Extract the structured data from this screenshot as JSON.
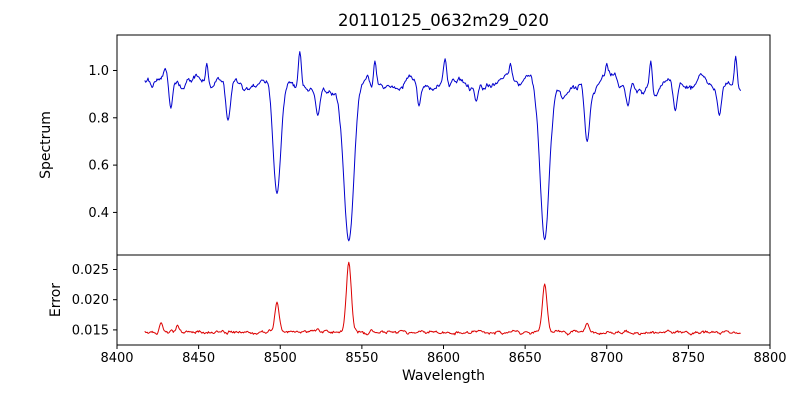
{
  "figure": {
    "title": "20110125_0632m29_020",
    "background": "#ffffff"
  },
  "chart_data": [
    {
      "type": "line",
      "series_name": "spectrum",
      "title": "20110125_0632m29_020",
      "ylabel": "Spectrum",
      "color": "#0000cd",
      "grid": false,
      "legend": null,
      "xlim": [
        8400,
        8800
      ],
      "ylim": [
        0.22,
        1.15
      ],
      "yticks": [
        {
          "value": 0.4,
          "label": "0.4"
        },
        {
          "value": 0.6,
          "label": "0.6"
        },
        {
          "value": 0.8,
          "label": "0.8"
        },
        {
          "value": 1.0,
          "label": "1.0"
        }
      ],
      "baseline": 0.94,
      "samples": {
        "x_start": 8417,
        "x_end": 8782,
        "x_step": 0.5,
        "seed": 42,
        "noise_components": [
          {
            "amplitude": 0.052,
            "smooth_window": 6,
            "passes": 2
          },
          {
            "amplitude": 0.028,
            "smooth_window": 2,
            "passes": 1
          }
        ]
      },
      "dips": [
        {
          "center": 8498,
          "level": 0.48,
          "sigma": 2.3
        },
        {
          "center": 8542,
          "level": 0.28,
          "sigma": 3.0
        },
        {
          "center": 8662,
          "level": 0.285,
          "sigma": 2.8
        },
        {
          "center": 8688,
          "level": 0.7,
          "sigma": 1.5
        },
        {
          "center": 8433,
          "level": 0.84,
          "sigma": 1.2
        },
        {
          "center": 8468,
          "level": 0.79,
          "sigma": 1.4
        },
        {
          "center": 8523,
          "level": 0.81,
          "sigma": 1.2
        },
        {
          "center": 8585,
          "level": 0.85,
          "sigma": 1.1
        },
        {
          "center": 8620,
          "level": 0.87,
          "sigma": 1.0
        },
        {
          "center": 8673,
          "level": 0.88,
          "sigma": 0.9
        },
        {
          "center": 8713,
          "level": 0.85,
          "sigma": 1.1
        },
        {
          "center": 8742,
          "level": 0.83,
          "sigma": 1.2
        },
        {
          "center": 8769,
          "level": 0.81,
          "sigma": 1.2
        }
      ],
      "peaks": [
        {
          "center": 8455,
          "level": 1.03,
          "sigma": 0.8
        },
        {
          "center": 8512,
          "level": 1.08,
          "sigma": 0.9
        },
        {
          "center": 8558,
          "level": 1.04,
          "sigma": 0.8
        },
        {
          "center": 8601,
          "level": 1.05,
          "sigma": 0.8
        },
        {
          "center": 8641,
          "level": 1.03,
          "sigma": 0.7
        },
        {
          "center": 8700,
          "level": 1.03,
          "sigma": 0.7
        },
        {
          "center": 8727,
          "level": 1.04,
          "sigma": 0.8
        },
        {
          "center": 8779,
          "level": 1.06,
          "sigma": 0.8
        }
      ]
    },
    {
      "type": "line",
      "series_name": "error",
      "ylabel": "Error",
      "xlabel": "Wavelength",
      "color": "#dc0000",
      "grid": false,
      "legend": null,
      "xlim": [
        8400,
        8800
      ],
      "ylim": [
        0.0125,
        0.0274
      ],
      "yticks": [
        {
          "value": 0.015,
          "label": "0.015"
        },
        {
          "value": 0.02,
          "label": "0.020"
        },
        {
          "value": 0.025,
          "label": "0.025"
        }
      ],
      "xticks": [
        {
          "value": 8400,
          "label": "8400"
        },
        {
          "value": 8450,
          "label": "8450"
        },
        {
          "value": 8500,
          "label": "8500"
        },
        {
          "value": 8550,
          "label": "8550"
        },
        {
          "value": 8600,
          "label": "8600"
        },
        {
          "value": 8650,
          "label": "8650"
        },
        {
          "value": 8700,
          "label": "8700"
        },
        {
          "value": 8750,
          "label": "8750"
        },
        {
          "value": 8800,
          "label": "8800"
        }
      ],
      "baseline": 0.0146,
      "samples": {
        "x_start": 8417,
        "x_end": 8782,
        "x_step": 0.5,
        "seed": 7,
        "noise_components": [
          {
            "amplitude": 0.00042,
            "smooth_window": 2,
            "passes": 1
          },
          {
            "amplitude": 0.00012,
            "smooth_window": 1,
            "passes": 0
          }
        ]
      },
      "dips": [],
      "peaks": [
        {
          "center": 8427,
          "level": 0.0162,
          "sigma": 1.0
        },
        {
          "center": 8437,
          "level": 0.0158,
          "sigma": 0.9
        },
        {
          "center": 8498,
          "level": 0.0196,
          "sigma": 1.3
        },
        {
          "center": 8523,
          "level": 0.0152,
          "sigma": 0.9
        },
        {
          "center": 8542,
          "level": 0.0262,
          "sigma": 1.5
        },
        {
          "center": 8662,
          "level": 0.0226,
          "sigma": 1.4
        },
        {
          "center": 8688,
          "level": 0.0161,
          "sigma": 1.0
        }
      ]
    }
  ]
}
